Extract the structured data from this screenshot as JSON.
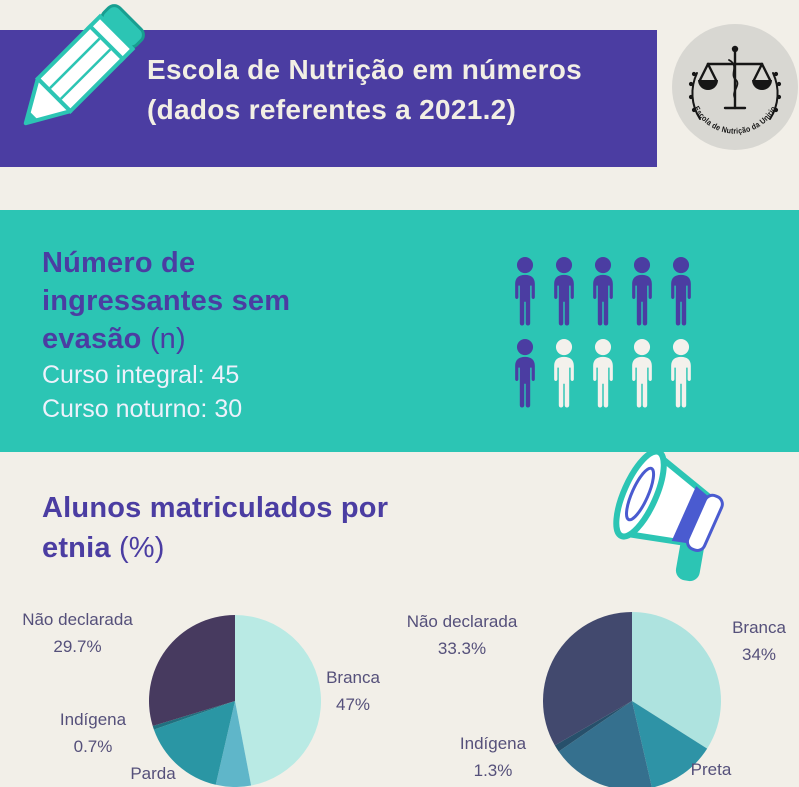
{
  "page": {
    "background": "#f2efe8",
    "purple": "#4b3da2",
    "teal": "#2cc5b4",
    "cream": "#f2efe4"
  },
  "header": {
    "title_line1": "Escola de Nutrição em números",
    "title_line2": "(dados referentes a 2021.2)",
    "logo_text": "Escola de Nutrição da Unirio"
  },
  "ingressantes": {
    "heading_line1": "Número de",
    "heading_line2": "ingressantes sem",
    "heading_line3_bold": "evasão",
    "heading_line3_normal": "(n)",
    "curso_integral": "Curso integral: 45",
    "curso_noturno": "Curso noturno: 30"
  },
  "etnia": {
    "heading_line1": "Alunos matriculados por",
    "heading_line2_bold": "etnia",
    "heading_line2_normal": "(%)"
  },
  "chart_data": [
    {
      "type": "pictograph",
      "title": "Número de ingressantes sem evasão (n)",
      "categories": [
        "Curso integral",
        "Curso noturno"
      ],
      "values": [
        45,
        30
      ],
      "icons": {
        "total": 10,
        "filled": 6,
        "filled_color": "#4b3da2",
        "empty_color": "#f3f1ec"
      }
    },
    {
      "type": "pie",
      "position": "left",
      "title": "Alunos matriculados por etnia (%)",
      "labels": [
        "Branca",
        "Preta",
        "Parda",
        "Indígena",
        "Não declarada"
      ],
      "values": [
        47,
        6.6,
        16,
        0.7,
        29.7
      ],
      "colors": [
        "#b9eae4",
        "#5fb6c9",
        "#2a96a4",
        "#20707f",
        "#473a5f"
      ],
      "callouts": [
        {
          "name": "Não declarada",
          "pct": "29.7%"
        },
        {
          "name": "Branca",
          "pct": "47%"
        },
        {
          "name": "Indígena",
          "pct": "0.7%"
        },
        {
          "name": "Parda",
          "pct": ""
        }
      ]
    },
    {
      "type": "pie",
      "position": "right",
      "title": "Alunos matriculados por etnia (%)",
      "labels": [
        "Branca",
        "Preta",
        "Parda",
        "Indígena",
        "Não declarada"
      ],
      "values": [
        34,
        12.4,
        19,
        1.3,
        33.3
      ],
      "colors": [
        "#aee3df",
        "#2e93a6",
        "#35708e",
        "#27506b",
        "#42496e"
      ],
      "callouts": [
        {
          "name": "Não declarada",
          "pct": "33.3%"
        },
        {
          "name": "Branca",
          "pct": "34%"
        },
        {
          "name": "Indígena",
          "pct": "1.3%"
        },
        {
          "name": "Preta",
          "pct": ""
        }
      ]
    }
  ]
}
